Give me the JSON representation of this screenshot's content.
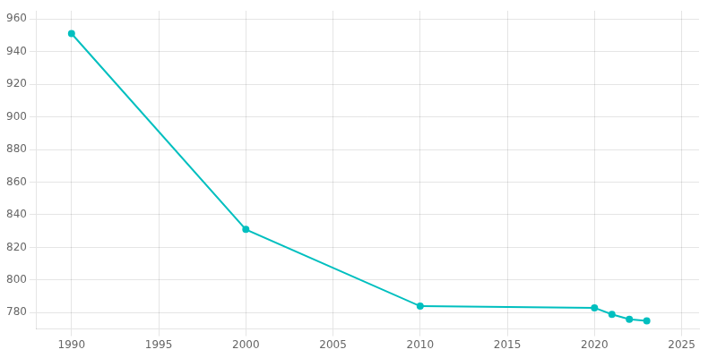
{
  "chart_data": {
    "type": "line",
    "x": [
      1990,
      2000,
      2010,
      2020,
      2021,
      2022,
      2023
    ],
    "values": [
      951,
      831,
      784,
      783,
      779,
      776,
      775
    ],
    "color": "#00BFBF",
    "marker": "circle",
    "xlim": [
      1988,
      2026
    ],
    "xticks": [
      1990,
      1995,
      2000,
      2005,
      2010,
      2015,
      2020,
      2025
    ],
    "ylim": [
      770,
      965
    ],
    "yticks": [
      780,
      800,
      820,
      840,
      860,
      880,
      900,
      920,
      940,
      960
    ],
    "grid": true
  }
}
